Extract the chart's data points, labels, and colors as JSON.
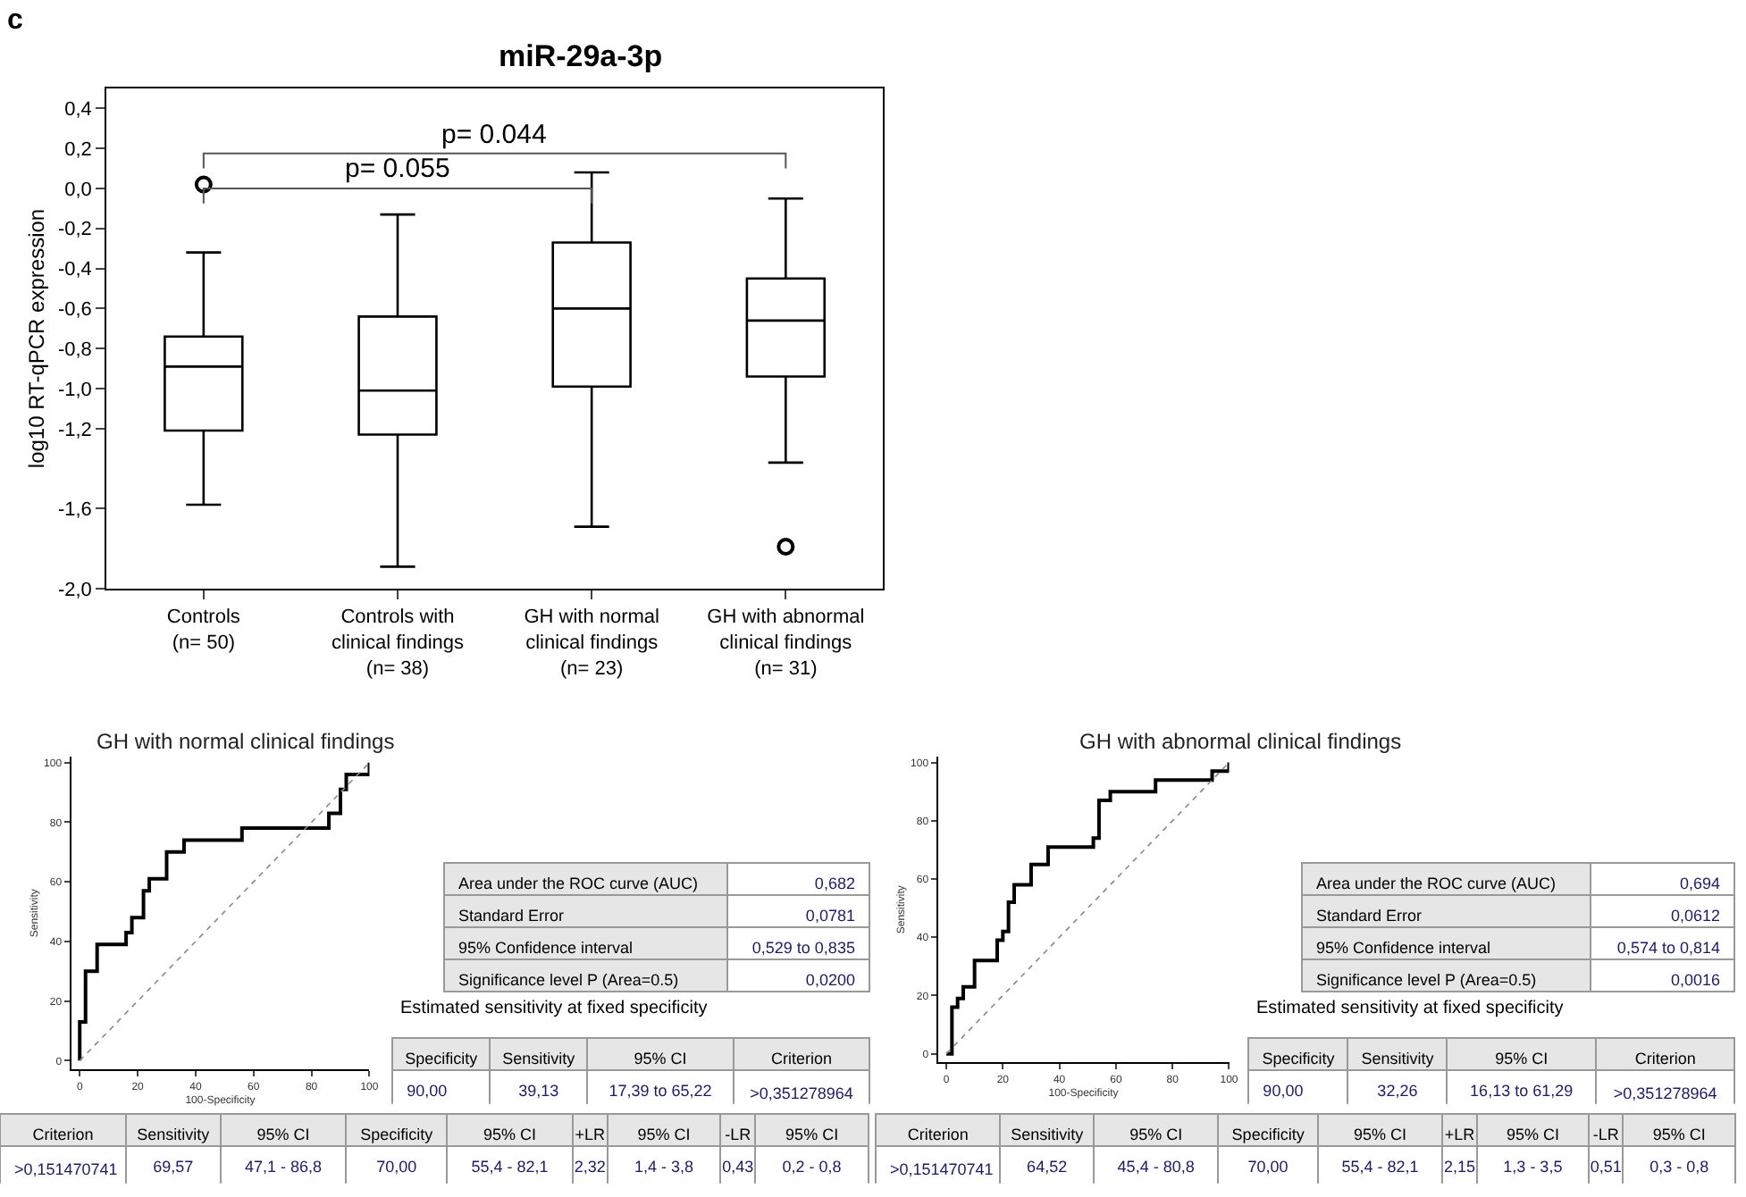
{
  "chart_data": [
    {
      "type": "box",
      "title": "miR-29a-3p",
      "ylabel": "log10 RT-qPCR expression",
      "marker": "circle",
      "categories": [
        "Controls\n(n= 50)",
        "Controls with\nclinical findings\n(n= 38)",
        "GH with normal\nclinical findings\n(n= 23)",
        "GH with abnormal\nclinical findings\n(n= 31)"
      ],
      "boxes": [
        {
          "low": -1.58,
          "q1": -1.21,
          "median": -0.89,
          "q3": -0.74,
          "high": -0.32,
          "outliers": [
            0.02
          ]
        },
        {
          "low": -1.89,
          "q1": -1.23,
          "median": -1.01,
          "q3": -0.64,
          "high": -0.13
        },
        {
          "low": -1.69,
          "q1": -0.99,
          "median": -0.6,
          "q3": -0.27,
          "high": 0.08
        },
        {
          "low": -1.37,
          "q1": -0.94,
          "median": -0.66,
          "q3": -0.45,
          "high": -0.05,
          "outliers": [
            -1.79
          ]
        }
      ],
      "ylim": [
        -2.0,
        0.5
      ],
      "yticks": [
        {
          "value": 0.4,
          "label": "0,4"
        },
        {
          "value": 0.2,
          "label": "0,2"
        },
        {
          "value": 0.0,
          "label": "0,0"
        },
        {
          "value": -0.2,
          "label": "-0,2"
        },
        {
          "value": -0.4,
          "label": "-0,4"
        },
        {
          "value": -0.6,
          "label": "-0,6"
        },
        {
          "value": -0.8,
          "label": "-0,8"
        },
        {
          "value": -1.0,
          "label": "-1,0"
        },
        {
          "value": -1.2,
          "label": "-1,2"
        },
        {
          "value": -1.6,
          "label": "-1,6"
        },
        {
          "value": -2.0,
          "label": "-2,0"
        }
      ],
      "annotations": [
        "c",
        "p= 0.044",
        "p= 0.055"
      ]
    },
    {
      "type": "step",
      "title": "GH with normal clinical findings",
      "xlabel": "100-Specificity",
      "ylabel": "Sensitivity",
      "series": [
        {
          "type": "step",
          "color": "#000000",
          "x": [
            0,
            0,
            2,
            6,
            16,
            18,
            22,
            24,
            30,
            36,
            56,
            86,
            90,
            92,
            100
          ],
          "values": [
            0,
            13,
            30,
            39,
            43,
            48,
            57,
            61,
            70,
            74,
            78,
            83,
            91,
            96,
            100
          ]
        },
        {
          "type": "line",
          "color": "#888888",
          "line_style": "dotted",
          "x": [
            0,
            100
          ],
          "values": [
            0,
            100
          ]
        }
      ],
      "xlim": [
        -3,
        100
      ],
      "ylim": [
        -3,
        102
      ],
      "xticks": [
        0,
        20,
        40,
        60,
        80,
        100
      ],
      "yticks": [
        0,
        20,
        40,
        60,
        80,
        100
      ]
    },
    {
      "type": "other",
      "cells": [
        [
          "Area under the ROC curve (AUC)",
          "0,682"
        ],
        [
          "Standard Error",
          "0,0781"
        ],
        [
          "95% Confidence interval",
          "0,529 to 0,835"
        ],
        [
          "Significance level P (Area=0.5)",
          "0,0200"
        ]
      ]
    },
    {
      "type": "other",
      "title": "Estimated sensitivity at fixed specificity",
      "cells": [
        [
          "Specificity",
          "Sensitivity",
          "95% CI",
          "Criterion"
        ],
        [
          "90,00",
          "39,13",
          "17,39 to 65,22",
          ">0,351278964"
        ]
      ]
    },
    {
      "type": "other",
      "cells": [
        [
          "Criterion",
          "Sensitivity",
          "95% CI",
          "Specificity",
          "95% CI",
          "+LR",
          "95% CI",
          "-LR",
          "95% CI"
        ],
        [
          ">0,151470741",
          "69,57",
          "47,1 - 86,8",
          "70,00",
          "55,4 - 82,1",
          "2,32",
          "1,4 - 3,8",
          "0,43",
          "0,2 - 0,8"
        ]
      ]
    },
    {
      "type": "step",
      "title": "GH with abnormal clinical findings",
      "xlabel": "100-Specificity",
      "ylabel": "Sensitivity",
      "series": [
        {
          "type": "step",
          "color": "#000000",
          "x": [
            0,
            2,
            2,
            4,
            6,
            10,
            18,
            20,
            22,
            24,
            30,
            36,
            52,
            54,
            58,
            74,
            94,
            100
          ],
          "values": [
            0,
            0,
            16,
            19,
            23,
            32,
            39,
            42,
            52,
            58,
            65,
            71,
            74,
            87,
            90,
            94,
            97,
            100
          ]
        },
        {
          "type": "line",
          "color": "#888888",
          "line_style": "dotted",
          "x": [
            0,
            100
          ],
          "values": [
            0,
            100
          ]
        }
      ],
      "xlim": [
        -3,
        100
      ],
      "ylim": [
        -3,
        102
      ],
      "xticks": [
        0,
        20,
        40,
        60,
        80,
        100
      ],
      "yticks": [
        0,
        20,
        40,
        60,
        80,
        100
      ]
    },
    {
      "type": "other",
      "cells": [
        [
          "Area under the ROC curve (AUC)",
          "0,694"
        ],
        [
          "Standard Error",
          "0,0612"
        ],
        [
          "95% Confidence interval",
          "0,574 to 0,814"
        ],
        [
          "Significance level P (Area=0.5)",
          "0,0016"
        ]
      ]
    },
    {
      "type": "other",
      "title": "Estimated sensitivity at fixed specificity",
      "cells": [
        [
          "Specificity",
          "Sensitivity",
          "95% CI",
          "Criterion"
        ],
        [
          "90,00",
          "32,26",
          "16,13 to 61,29",
          ">0,351278964"
        ]
      ]
    },
    {
      "type": "other",
      "cells": [
        [
          "Criterion",
          "Sensitivity",
          "95% CI",
          "Specificity",
          "95% CI",
          "+LR",
          "95% CI",
          "-LR",
          "95% CI"
        ],
        [
          ">0,151470741",
          "64,52",
          "45,4 - 80,8",
          "70,00",
          "55,4 - 82,1",
          "2,15",
          "1,3 - 3,5",
          "0,51",
          "0,3 - 0,8"
        ]
      ]
    }
  ]
}
